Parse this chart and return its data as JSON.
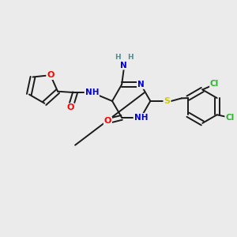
{
  "bg_color": "#ebebeb",
  "bond_color": "#1a1a1a",
  "atom_colors": {
    "O": "#ff0000",
    "N": "#0000cc",
    "S": "#cccc00",
    "Cl": "#2db22d",
    "C": "#1a1a1a",
    "H": "#4a9090"
  },
  "lw": 1.4,
  "fs": 8.0
}
